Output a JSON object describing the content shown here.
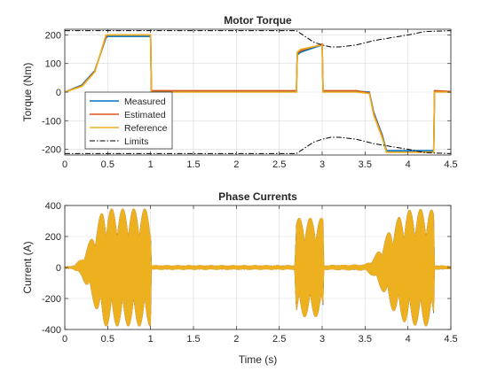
{
  "colors": {
    "measured": "#0072BD",
    "estimated": "#D95319",
    "reference": "#EDB120",
    "limits": "#000000",
    "grid": "#dcdcdc",
    "axis": "#262626"
  },
  "chart_data": [
    {
      "type": "line",
      "title": "Motor Torque",
      "xlabel": "",
      "ylabel": "Torque (Nm)",
      "xlim": [
        0,
        4.5
      ],
      "ylim": [
        -220,
        220
      ],
      "xticks": [
        0,
        0.5,
        1,
        1.5,
        2,
        2.5,
        3,
        3.5,
        4,
        4.5
      ],
      "xtick_labels": [
        "0",
        "0.5",
        "1",
        "1.5",
        "2",
        "2.5",
        "3",
        "3.5",
        "4",
        "4.5"
      ],
      "yticks": [
        -200,
        -100,
        0,
        100,
        200
      ],
      "ytick_labels": [
        "-200",
        "-100",
        "0",
        "100",
        "200"
      ],
      "grid": true,
      "legend": "lower-left",
      "legend_entries": [
        "Measured",
        "Estimated",
        "Reference",
        "Limits"
      ],
      "series": [
        {
          "name": "Measured",
          "x": [
            0,
            0.2,
            0.35,
            0.48,
            0.5,
            1.0,
            1.01,
            2.7,
            2.71,
            2.75,
            3.0,
            3.01,
            3.4,
            3.55,
            3.6,
            3.7,
            3.75,
            4.3,
            4.31,
            4.5
          ],
          "y": [
            0,
            25,
            75,
            190,
            195,
            195,
            3,
            3,
            130,
            140,
            165,
            3,
            3,
            0,
            -70,
            -150,
            -205,
            -205,
            3,
            0
          ]
        },
        {
          "name": "Estimated",
          "x": [
            0,
            0.2,
            0.35,
            0.48,
            0.5,
            1.0,
            1.01,
            2.7,
            2.71,
            2.75,
            3.0,
            3.01,
            3.4,
            3.55,
            3.6,
            3.7,
            3.75,
            4.3,
            4.31,
            4.5
          ],
          "y": [
            0,
            22,
            72,
            195,
            200,
            200,
            5,
            5,
            135,
            145,
            168,
            5,
            5,
            -3,
            -75,
            -155,
            -210,
            -210,
            5,
            2
          ]
        },
        {
          "name": "Reference",
          "x": [
            0,
            0.2,
            0.35,
            0.48,
            0.5,
            1.0,
            1.01,
            2.7,
            2.71,
            2.75,
            3.0,
            3.01,
            3.4,
            3.55,
            3.6,
            3.7,
            3.75,
            4.3,
            4.31,
            4.5
          ],
          "y": [
            0,
            20,
            70,
            200,
            200,
            200,
            0,
            0,
            140,
            150,
            165,
            0,
            0,
            -5,
            -80,
            -160,
            -210,
            -210,
            0,
            0
          ]
        },
        {
          "name": "Limits",
          "x": [
            0,
            2.7,
            2.8,
            2.9,
            3.0,
            3.1,
            3.2,
            3.4,
            3.6,
            3.8,
            4.0,
            4.2,
            4.5
          ],
          "y": [
            215,
            215,
            195,
            175,
            165,
            158,
            158,
            165,
            180,
            190,
            200,
            212,
            215
          ],
          "mirror": true
        }
      ]
    },
    {
      "type": "line",
      "title": "Phase Currents",
      "xlabel": "Time (s)",
      "ylabel": "Current (A)",
      "xlim": [
        0,
        4.5
      ],
      "ylim": [
        -400,
        400
      ],
      "xticks": [
        0,
        0.5,
        1,
        1.5,
        2,
        2.5,
        3,
        3.5,
        4,
        4.5
      ],
      "xtick_labels": [
        "0",
        "0.5",
        "1",
        "1.5",
        "2",
        "2.5",
        "3",
        "3.5",
        "4",
        "4.5"
      ],
      "yticks": [
        -400,
        -200,
        0,
        200,
        400
      ],
      "ytick_labels": [
        "-400",
        "-200",
        "0",
        "200",
        "400"
      ],
      "grid": true,
      "envelope": {
        "t": [
          0,
          0.1,
          0.2,
          0.3,
          0.4,
          0.45,
          1.0,
          1.01,
          2.68,
          2.7,
          3.01,
          3.02,
          3.5,
          3.6,
          3.7,
          3.8,
          3.9,
          4.0,
          4.2,
          4.3,
          4.31,
          4.5
        ],
        "amp": [
          5,
          10,
          60,
          180,
          320,
          380,
          380,
          15,
          15,
          320,
          320,
          15,
          20,
          60,
          150,
          260,
          330,
          370,
          380,
          370,
          15,
          10
        ]
      }
    }
  ]
}
